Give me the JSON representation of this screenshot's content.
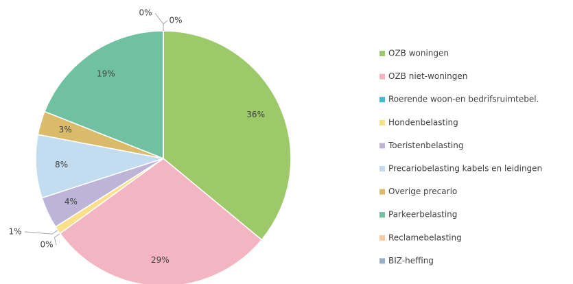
{
  "chart_data": {
    "type": "pie",
    "categories": [
      "OZB woningen",
      "OZB niet-woningen",
      "Roerende woon-en bedrifsruimtebel.",
      "Hondenbelasting",
      "Toeristenbelasting",
      "Precariobelasting kabels en leidingen",
      "Overige precario",
      "Parkeerbelasting",
      "Reclamebelasting",
      "BIZ-heffing"
    ],
    "values": [
      36,
      29,
      0,
      1,
      4,
      8,
      3,
      19,
      0,
      0
    ],
    "value_labels": [
      "36%",
      "29%",
      "0%",
      "1%",
      "4%",
      "8%",
      "3%",
      "19%",
      "0%",
      "0%"
    ],
    "colors": [
      "#9dc96a",
      "#f4b5c3",
      "#4bb8d1",
      "#fbe08c",
      "#bcb5d8",
      "#c3dcef",
      "#d9bb69",
      "#6fc1a2",
      "#f8c9a0",
      "#98aec5"
    ],
    "legend": "right"
  }
}
